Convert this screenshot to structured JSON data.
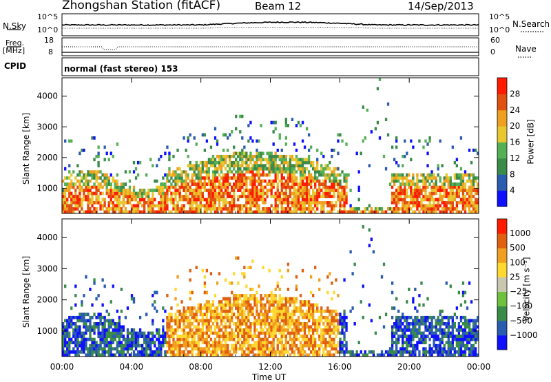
{
  "header": {
    "station_title": "Zhongshan Station (fitACF)",
    "beam": "Beam 12",
    "date": "14/Sep/2013"
  },
  "left_labels": {
    "nsky": "N.Sky",
    "freq_line1": "Freq.",
    "freq_line2": "[MHz]",
    "cpid": "CPID"
  },
  "right_labels": {
    "nsearch": "N.Search",
    "nave": "Nave"
  },
  "strip_ticks": {
    "noise_left_top": "10^5",
    "noise_left_bottom": "10^0",
    "noise_right_top": "10^5",
    "noise_right_bottom": "10^0",
    "freq_left_top": "18",
    "freq_left_bottom": "8",
    "nave_right_top": "60",
    "nave_right_bottom": "0"
  },
  "cpid_text": "normal (fast stereo) 153",
  "colors": {
    "power_scale": [
      "#1010ff",
      "#2a5cb0",
      "#3a8a4a",
      "#55b055",
      "#e8c830",
      "#f0a020",
      "#e05010",
      "#ff1a00"
    ],
    "velocity_scale": [
      "#1010ff",
      "#2a5cb0",
      "#3a8a4a",
      "#70c040",
      "#c8c8b0",
      "#ffd830",
      "#f0a020",
      "#e06010",
      "#ff1a00"
    ]
  },
  "chart_data": [
    {
      "type": "heatmap",
      "name": "power",
      "xlabel": "Time UT",
      "ylabel": "Slant Range [km]",
      "x_ticks": [
        "00:00",
        "04:00",
        "08:00",
        "12:00",
        "16:00",
        "20:00",
        "00:00"
      ],
      "y_ticks": [
        1000,
        2000,
        3000,
        4000
      ],
      "xlim_hours": [
        0,
        24
      ],
      "ylim_km": [
        180,
        4600
      ],
      "colorbar": {
        "label": "Power [dB]",
        "ticks": [
          "4",
          "8",
          "12",
          "16",
          "20",
          "24",
          "28"
        ],
        "range": [
          0,
          30
        ]
      }
    },
    {
      "type": "heatmap",
      "name": "velocity",
      "xlabel": "Time UT",
      "ylabel": "Slant Range [km]",
      "x_ticks": [
        "00:00",
        "04:00",
        "08:00",
        "12:00",
        "16:00",
        "20:00",
        "00:00"
      ],
      "y_ticks": [
        1000,
        2000,
        3000,
        4000
      ],
      "xlim_hours": [
        0,
        24
      ],
      "ylim_km": [
        180,
        4600
      ],
      "colorbar": {
        "label": "Velocity [m s⁻¹]",
        "ticks": [
          "1000",
          "500",
          "100",
          "25",
          "−25",
          "−100",
          "−500",
          "−1000"
        ]
      }
    }
  ]
}
